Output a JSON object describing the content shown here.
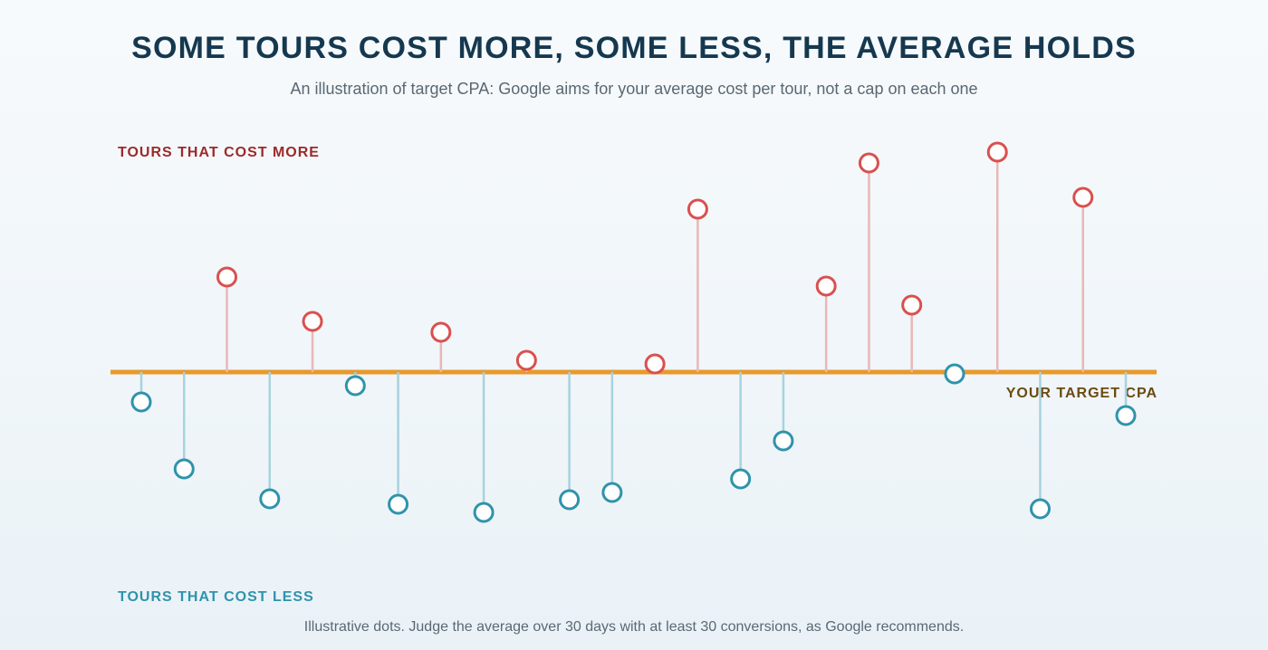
{
  "header": {
    "title": "SOME TOURS COST MORE, SOME LESS, THE AVERAGE HOLDS",
    "subtitle": "An illustration of target CPA: Google aims for your average cost per tour, not a cap on each one"
  },
  "labels": {
    "above": "TOURS THAT COST MORE",
    "below": "TOURS THAT COST LESS",
    "target": "YOUR TARGET CPA"
  },
  "footnote": "Illustrative dots. Judge the average over 30 days with at least 30 conversions, as Google recommends.",
  "colors": {
    "above": "#d9504e",
    "above_stem": "#eab7b6",
    "below": "#2f93ab",
    "below_stem": "#a7d3de",
    "target_line": "#e8992a"
  },
  "chart_data": {
    "type": "scatter",
    "title": "SOME TOURS COST MORE, SOME LESS, THE AVERAGE HOLDS",
    "baseline_label": "YOUR TARGET CPA",
    "y_meaning": "deviation from target CPA (illustrative, unitless)",
    "ylim": [
      -160,
      245
    ],
    "values": [
      -33,
      -107,
      105,
      -140,
      56,
      -15,
      -146,
      44,
      -155,
      13,
      -141,
      -133,
      9,
      180,
      -118,
      -76,
      95,
      231,
      74,
      -2,
      243,
      -151,
      193,
      -48
    ]
  }
}
